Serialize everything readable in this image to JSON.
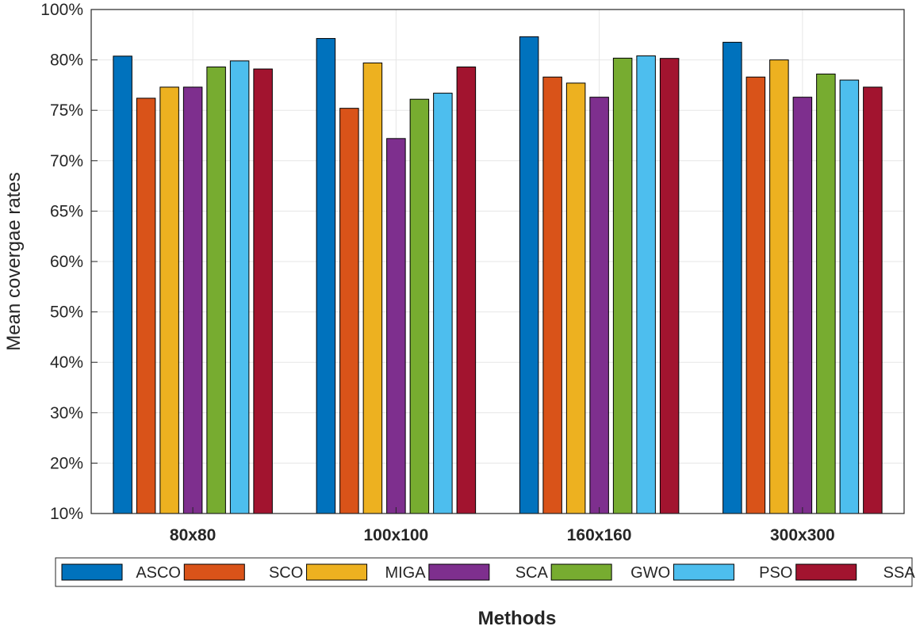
{
  "chart_data": {
    "type": "bar",
    "categories": [
      "80x80",
      "100x100",
      "160x160",
      "300x300"
    ],
    "series": [
      {
        "name": "ASCO",
        "color": "#0072BD",
        "values": [
          81.5,
          88.5,
          89.2,
          87.0
        ]
      },
      {
        "name": "SCO",
        "color": "#D95319",
        "values": [
          76.2,
          75.2,
          78.3,
          78.3
        ]
      },
      {
        "name": "MIGA",
        "color": "#EDB120",
        "values": [
          77.3,
          79.7,
          77.7,
          80.0
        ]
      },
      {
        "name": "SCA",
        "color": "#7E2F8E",
        "values": [
          77.3,
          72.2,
          76.3,
          76.3
        ]
      },
      {
        "name": "GWO",
        "color": "#77AC30",
        "values": [
          79.3,
          76.1,
          80.7,
          78.6
        ]
      },
      {
        "name": "PSO",
        "color": "#4DBEEE",
        "values": [
          79.9,
          76.7,
          81.6,
          78.0
        ]
      },
      {
        "name": "SSA",
        "color": "#A2142F",
        "values": [
          79.1,
          79.3,
          80.6,
          77.3
        ]
      }
    ],
    "yticks": [
      "10%",
      "20%",
      "30%",
      "40%",
      "50%",
      "60%",
      "65%",
      "70%",
      "75%",
      "80%",
      "100%"
    ],
    "xlabel": "Methods",
    "ylabel": "Mean covergae rates",
    "grid": true,
    "legend_position": "bottom"
  }
}
